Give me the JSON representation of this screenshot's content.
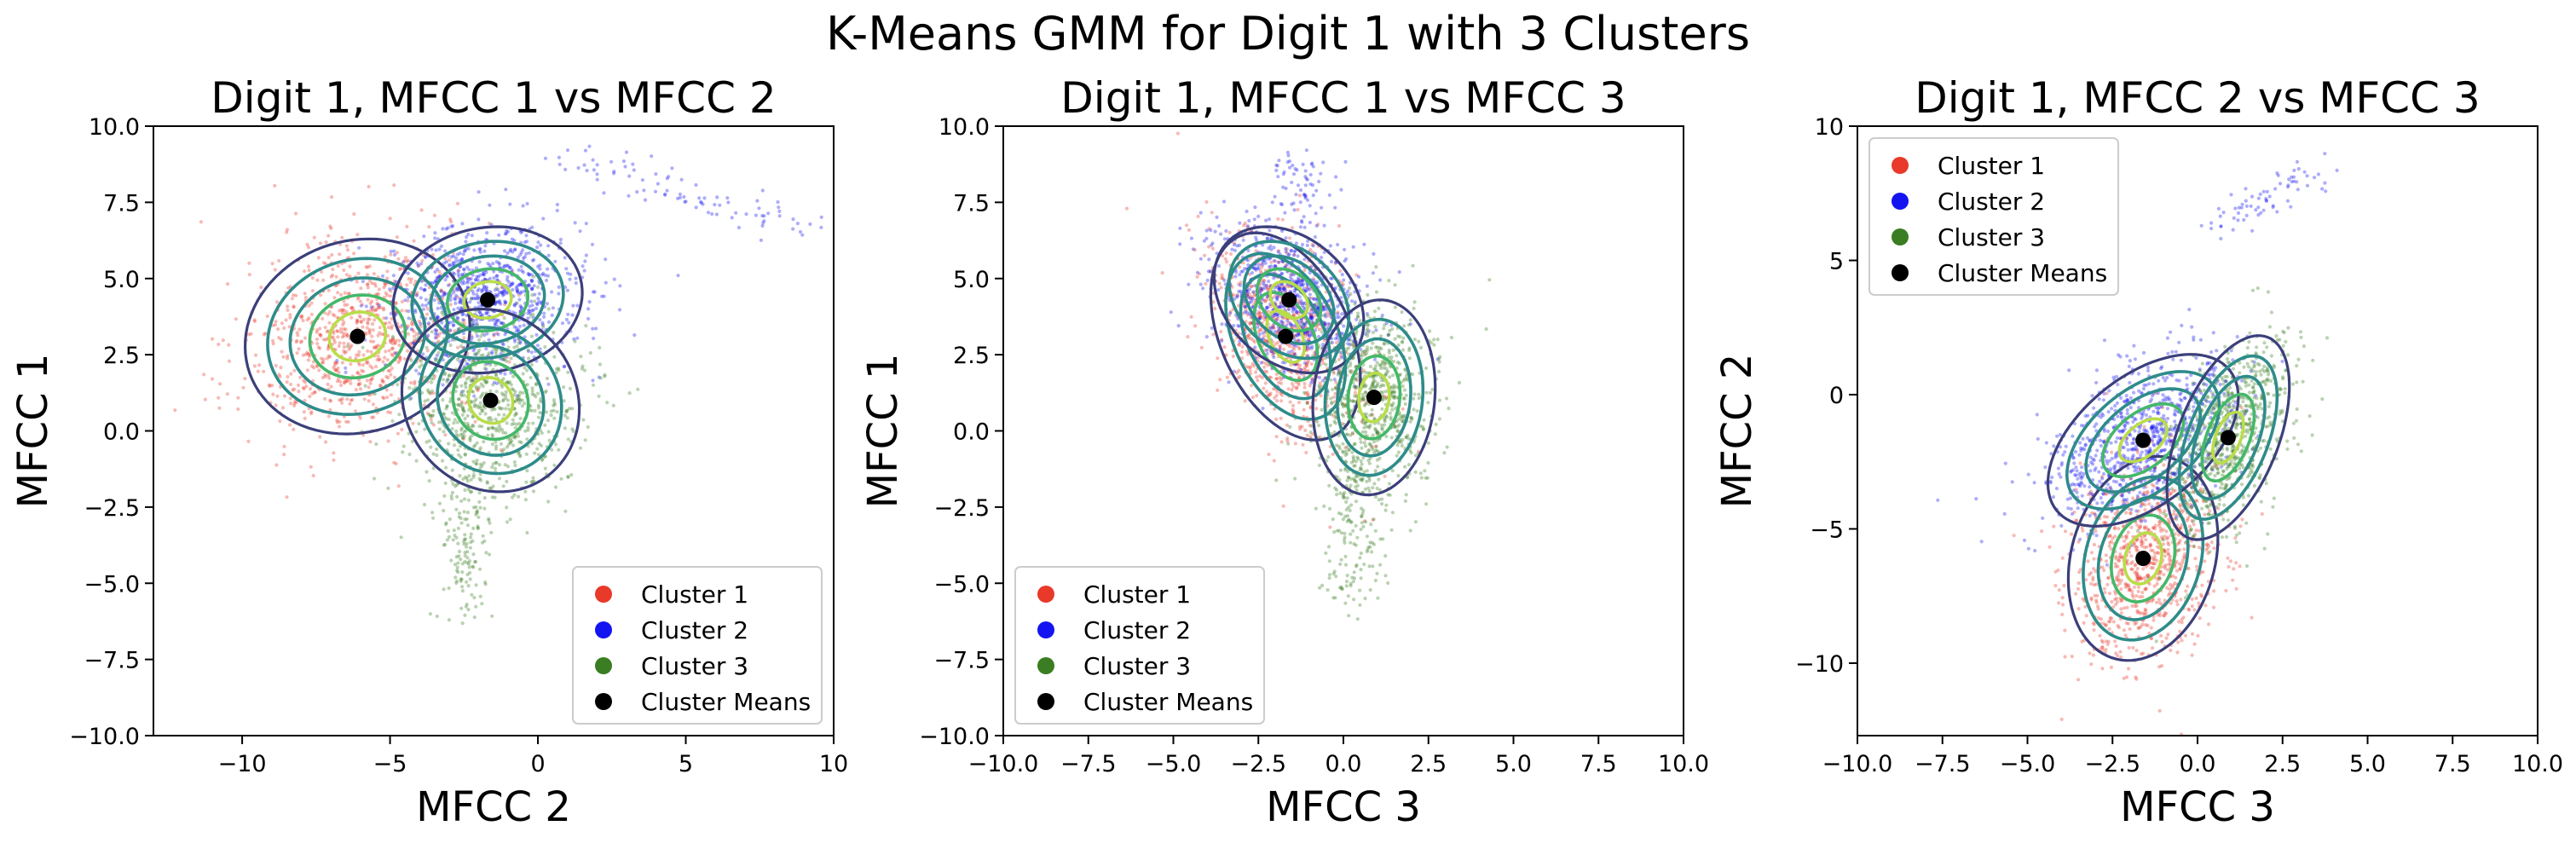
{
  "figure": {
    "suptitle": "K-Means GMM for Digit 1 with 3 Clusters"
  },
  "colors": {
    "cluster_1": "#e8392a",
    "cluster_2": "#1414f0",
    "cluster_3": "#3a7d22",
    "means": "#000000",
    "contour_dark": "#3b3f7a",
    "contour_teal": "#2e8c8a",
    "contour_green": "#44b86a",
    "contour_yellow": "#b9dd4a"
  },
  "legend_labels": [
    "Cluster 1",
    "Cluster 2",
    "Cluster 3",
    "Cluster Means"
  ],
  "chart_data": [
    {
      "type": "scatter",
      "title": "Digit 1, MFCC 1 vs MFCC 2",
      "xlabel": "MFCC 2",
      "ylabel": "MFCC 1",
      "xlim": [
        -13,
        10
      ],
      "ylim": [
        -10,
        10
      ],
      "xticks": [
        -10,
        -5,
        0,
        5,
        10
      ],
      "xtick_labels": [
        "−10",
        "−5",
        "0",
        "5",
        "10"
      ],
      "yticks": [
        -10,
        -7.5,
        -5,
        -2.5,
        0,
        2.5,
        5,
        7.5,
        10
      ],
      "ytick_labels": [
        "−10.0",
        "−7.5",
        "−5.0",
        "−2.5",
        "0.0",
        "2.5",
        "5.0",
        "7.5",
        "10.0"
      ],
      "legend_position": "lower-right",
      "means": [
        [
          -6.1,
          3.1
        ],
        [
          -1.7,
          4.3
        ],
        [
          -1.6,
          1.0
        ]
      ],
      "series": [
        {
          "name": "Cluster 1",
          "mean": [
            -6.1,
            3.1
          ],
          "sd": [
            1.9,
            1.6
          ],
          "rho": 0.1,
          "n": 900
        },
        {
          "name": "Cluster 2",
          "mean": [
            -1.7,
            4.3
          ],
          "sd": [
            1.6,
            1.2
          ],
          "rho": 0.1,
          "n": 900,
          "extra": {
            "from": [
              1.0,
              9.0
            ],
            "to": [
              9.5,
              6.5
            ],
            "n": 90
          }
        },
        {
          "name": "Cluster 3",
          "mean": [
            -1.6,
            1.0
          ],
          "sd": [
            1.5,
            1.5
          ],
          "rho": -0.1,
          "n": 800,
          "extra": {
            "from": [
              -2.5,
              -1.0
            ],
            "to": [
              -2.4,
              -6.0
            ],
            "n": 160
          }
        }
      ]
    },
    {
      "type": "scatter",
      "title": "Digit 1, MFCC 1 vs MFCC 3",
      "xlabel": "MFCC 3",
      "ylabel": "MFCC 1",
      "xlim": [
        -10,
        10
      ],
      "ylim": [
        -10,
        10
      ],
      "xticks": [
        -10,
        -7.5,
        -5,
        -2.5,
        0,
        2.5,
        5,
        7.5,
        10
      ],
      "xtick_labels": [
        "−10.0",
        "−7.5",
        "−5.0",
        "−2.5",
        "0.0",
        "2.5",
        "5.0",
        "7.5",
        "10.0"
      ],
      "yticks": [
        -10,
        -7.5,
        -5,
        -2.5,
        0,
        2.5,
        5,
        7.5,
        10
      ],
      "ytick_labels": [
        "−10.0",
        "−7.5",
        "−5.0",
        "−2.5",
        "0.0",
        "2.5",
        "5.0",
        "7.5",
        "10.0"
      ],
      "legend_position": "lower-left",
      "means": [
        [
          -1.7,
          3.1
        ],
        [
          -1.6,
          4.3
        ],
        [
          0.9,
          1.1
        ]
      ],
      "series": [
        {
          "name": "Cluster 1",
          "mean": [
            -1.7,
            3.1
          ],
          "sd": [
            1.1,
            1.7
          ],
          "rho": -0.4,
          "n": 800
        },
        {
          "name": "Cluster 2",
          "mean": [
            -1.6,
            4.3
          ],
          "sd": [
            1.1,
            1.2
          ],
          "rho": -0.3,
          "n": 900,
          "extra": {
            "from": [
              -1.5,
              8.8
            ],
            "to": [
              -0.8,
              7.5
            ],
            "n": 60
          }
        },
        {
          "name": "Cluster 3",
          "mean": [
            0.9,
            1.1
          ],
          "sd": [
            0.9,
            1.6
          ],
          "rho": 0.1,
          "n": 800,
          "extra": {
            "from": [
              0.4,
              -1.0
            ],
            "to": [
              0.2,
              -5.8
            ],
            "n": 160
          }
        }
      ]
    },
    {
      "type": "scatter",
      "title": "Digit 1, MFCC 2 vs MFCC 3",
      "xlabel": "MFCC 3",
      "ylabel": "MFCC 2",
      "xlim": [
        -10,
        10
      ],
      "ylim": [
        -12.7,
        10
      ],
      "xticks": [
        -10,
        -7.5,
        -5,
        -2.5,
        0,
        2.5,
        5,
        7.5,
        10
      ],
      "xtick_labels": [
        "−10.0",
        "−7.5",
        "−5.0",
        "−2.5",
        "0.0",
        "2.5",
        "5.0",
        "7.5",
        "10.0"
      ],
      "yticks": [
        -10,
        -5,
        0,
        5,
        10
      ],
      "ytick_labels": [
        "−10",
        "−5",
        "0",
        "5",
        "10"
      ],
      "legend_position": "upper-left",
      "means": [
        [
          -1.6,
          -6.1
        ],
        [
          -1.6,
          -1.7
        ],
        [
          0.9,
          -1.6
        ]
      ],
      "series": [
        {
          "name": "Cluster 1",
          "mean": [
            -1.6,
            -6.1
          ],
          "sd": [
            1.1,
            1.9
          ],
          "rho": 0.2,
          "n": 900
        },
        {
          "name": "Cluster 2",
          "mean": [
            -1.6,
            -1.7
          ],
          "sd": [
            1.4,
            1.6
          ],
          "rho": 0.5,
          "n": 900,
          "extra": {
            "from": [
              0.5,
              6.0
            ],
            "to": [
              3.5,
              8.5
            ],
            "n": 70
          }
        },
        {
          "name": "Cluster 3",
          "mean": [
            0.9,
            -1.6
          ],
          "sd": [
            0.9,
            1.9
          ],
          "rho": 0.5,
          "n": 800
        }
      ]
    }
  ]
}
